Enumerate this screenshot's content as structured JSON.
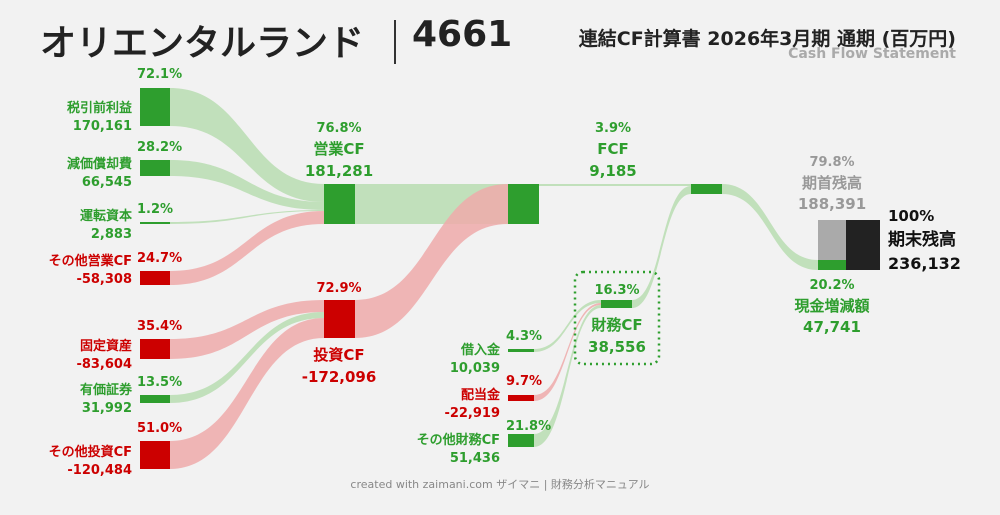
{
  "header": {
    "company": "オリエンタルランド",
    "code": "4661",
    "statement_title": "連結CF計算書 2026年3月期 通期 (百万円)",
    "statement_subtitle": "Cash Flow Statement"
  },
  "footer": "created with zaimani.com ザイマニ | 財務分析マニュアル",
  "colors": {
    "positive": "#2e9e2e",
    "negative": "#cc0000",
    "positive_flow": "#b8ddb2",
    "negative_flow": "#eeaaaa",
    "beginning": "#aaaaaa",
    "ending": "#222222"
  },
  "chart_data": {
    "type": "sankey",
    "unit": "百万円",
    "nodes": [
      {
        "id": "pretax",
        "label": "税引前利益",
        "value": "170,161",
        "pct": "72.1%",
        "sign": "positive"
      },
      {
        "id": "dep",
        "label": "減価償却費",
        "value": "66,545",
        "pct": "28.2%",
        "sign": "positive"
      },
      {
        "id": "wc",
        "label": "運転資本",
        "value": "2,883",
        "pct": "1.2%",
        "sign": "positive"
      },
      {
        "id": "opother",
        "label": "その他営業CF",
        "value": "-58,308",
        "pct": "24.7%",
        "sign": "negative"
      },
      {
        "id": "fixed",
        "label": "固定資産",
        "value": "-83,604",
        "pct": "35.4%",
        "sign": "negative"
      },
      {
        "id": "sec",
        "label": "有価証券",
        "value": "31,992",
        "pct": "13.5%",
        "sign": "positive"
      },
      {
        "id": "invother",
        "label": "その他投資CF",
        "value": "-120,484",
        "pct": "51.0%",
        "sign": "negative"
      },
      {
        "id": "opcf",
        "label": "営業CF",
        "value": "181,281",
        "pct": "76.8%",
        "sign": "positive"
      },
      {
        "id": "invcf",
        "label": "投資CF",
        "value": "-172,096",
        "pct": "72.9%",
        "sign": "negative"
      },
      {
        "id": "fcf",
        "label": "FCF",
        "value": "9,185",
        "pct": "3.9%",
        "sign": "positive"
      },
      {
        "id": "borrow",
        "label": "借入金",
        "value": "10,039",
        "pct": "4.3%",
        "sign": "positive"
      },
      {
        "id": "div",
        "label": "配当金",
        "value": "-22,919",
        "pct": "9.7%",
        "sign": "negative"
      },
      {
        "id": "finother",
        "label": "その他財務CF",
        "value": "51,436",
        "pct": "21.8%",
        "sign": "positive"
      },
      {
        "id": "fincf",
        "label": "財務CF",
        "value": "38,556",
        "pct": "16.3%",
        "sign": "positive"
      },
      {
        "id": "increase",
        "label": "現金増減額",
        "value": "47,741",
        "pct": "20.2%",
        "sign": "positive"
      },
      {
        "id": "begin",
        "label": "期首残高",
        "value": "188,391",
        "pct": "79.8%",
        "sign": "neutral"
      },
      {
        "id": "end",
        "label": "期末残高",
        "value": "236,132",
        "pct": "100%",
        "sign": "total"
      }
    ],
    "links": [
      {
        "from": "pretax",
        "to": "opcf"
      },
      {
        "from": "dep",
        "to": "opcf"
      },
      {
        "from": "wc",
        "to": "opcf"
      },
      {
        "from": "opother",
        "to": "opcf"
      },
      {
        "from": "fixed",
        "to": "invcf"
      },
      {
        "from": "sec",
        "to": "invcf"
      },
      {
        "from": "invother",
        "to": "invcf"
      },
      {
        "from": "opcf",
        "to": "fcf"
      },
      {
        "from": "invcf",
        "to": "fcf"
      },
      {
        "from": "borrow",
        "to": "fincf"
      },
      {
        "from": "div",
        "to": "fincf"
      },
      {
        "from": "finother",
        "to": "fincf"
      },
      {
        "from": "fcf",
        "to": "increase"
      },
      {
        "from": "fincf",
        "to": "increase"
      },
      {
        "from": "increase",
        "to": "end"
      },
      {
        "from": "begin",
        "to": "end"
      }
    ]
  }
}
